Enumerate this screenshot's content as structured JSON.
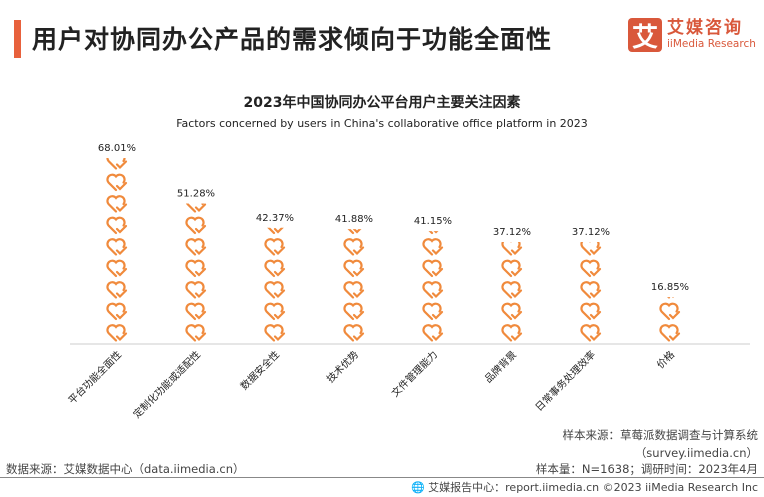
{
  "header": {
    "title": "用户对协同办公产品的需求倾向于功能全面性",
    "logo_mark": "艾",
    "logo_cn": "艾媒咨询",
    "logo_en": "iiMedia Research"
  },
  "chart_data": {
    "type": "bar",
    "title": "2023年中国协同办公平台用户主要关注因素",
    "subtitle": "Factors concerned by users in China's collaborative office platform in 2023",
    "categories": [
      "平台功能全面性",
      "定制化功能或适配性",
      "数据安全性",
      "技术优势",
      "文件管理能力",
      "品牌背景",
      "日常事务处理效率",
      "价格"
    ],
    "values": [
      68.01,
      51.28,
      42.37,
      41.88,
      41.15,
      37.12,
      37.12,
      16.85
    ],
    "value_labels": [
      "68.01%",
      "51.28%",
      "42.37%",
      "41.88%",
      "41.15%",
      "37.12%",
      "37.12%",
      "16.85%"
    ],
    "unit": "%",
    "mark": "heart-check-icon pictogram stack",
    "color": "#f08a3c",
    "grid": false
  },
  "footer": {
    "source": "数据来源：艾媒数据中心（data.iimedia.cn）",
    "sample_source": "样本来源：草莓派数据调查与计算系统",
    "sample_url": "（survey.iimedia.cn）",
    "sample_size": "样本量：N=1638；调研时间：2023年4月",
    "copyright": "艾媒报告中心：report.iimedia.cn   ©2023  iiMedia Research  Inc"
  }
}
